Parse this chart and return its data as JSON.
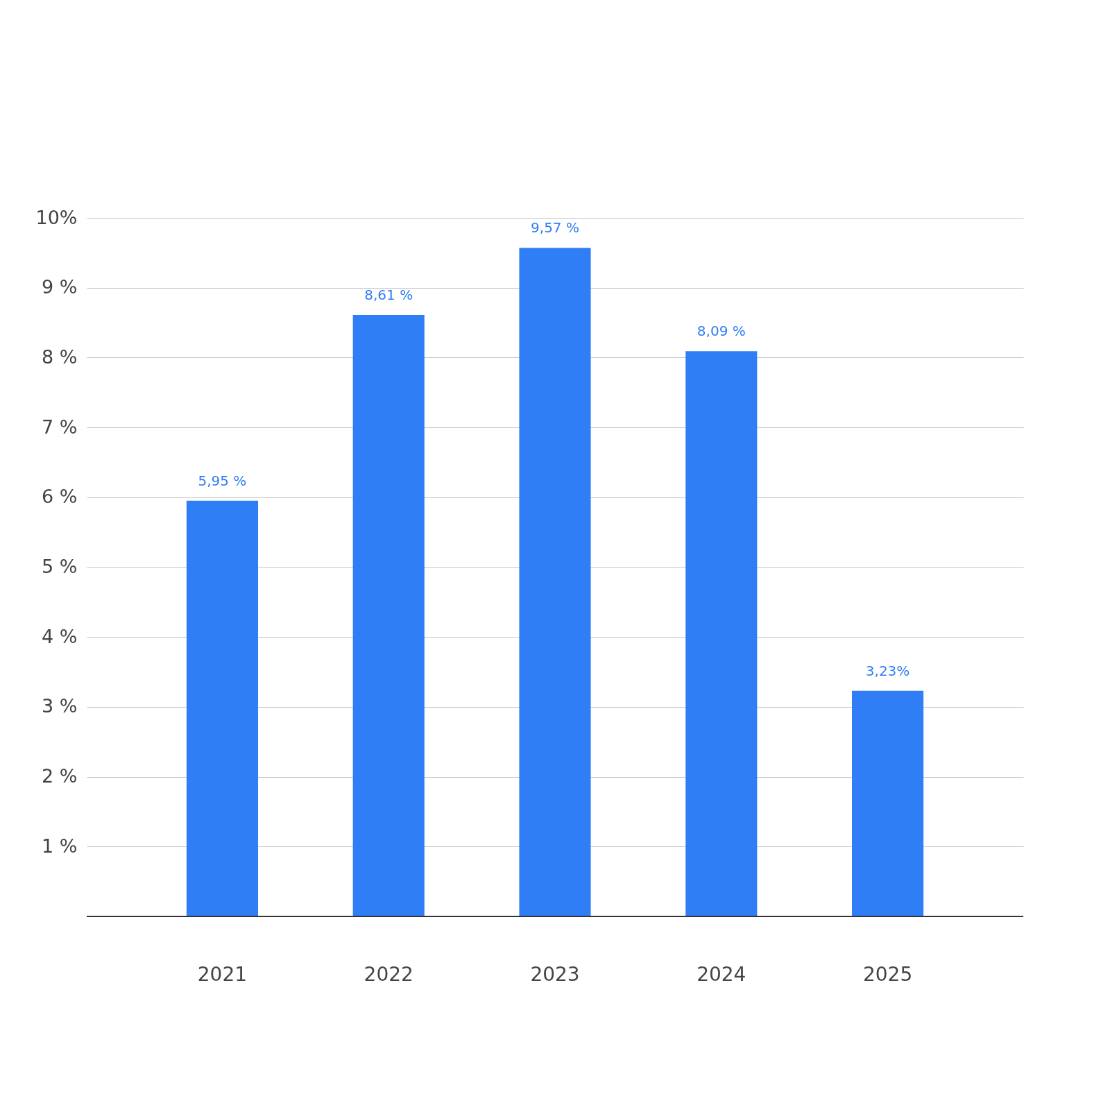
{
  "chart_data": {
    "type": "bar",
    "categories": [
      "2021",
      "2022",
      "2023",
      "2024",
      "2025"
    ],
    "values": [
      5.95,
      8.61,
      9.57,
      8.09,
      3.23
    ],
    "value_labels": [
      "5,95 %",
      "8,61 %",
      "9,57 %",
      "8,09 %",
      "3,23%"
    ],
    "color": "#2f7ef5",
    "ylim": [
      0,
      10
    ],
    "yticks": [
      {
        "value": 0,
        "label": null
      },
      {
        "value": 1,
        "label": "1 %"
      },
      {
        "value": 2,
        "label": "2 %"
      },
      {
        "value": 3,
        "label": "3 %"
      },
      {
        "value": 4,
        "label": "4 %"
      },
      {
        "value": 5,
        "label": "5 %"
      },
      {
        "value": 6,
        "label": "6 %"
      },
      {
        "value": 7,
        "label": "7 %"
      },
      {
        "value": 8,
        "label": "8 %"
      },
      {
        "value": 9,
        "label": "9 %"
      },
      {
        "value": 10,
        "label": "10%"
      }
    ],
    "grid": "y"
  }
}
